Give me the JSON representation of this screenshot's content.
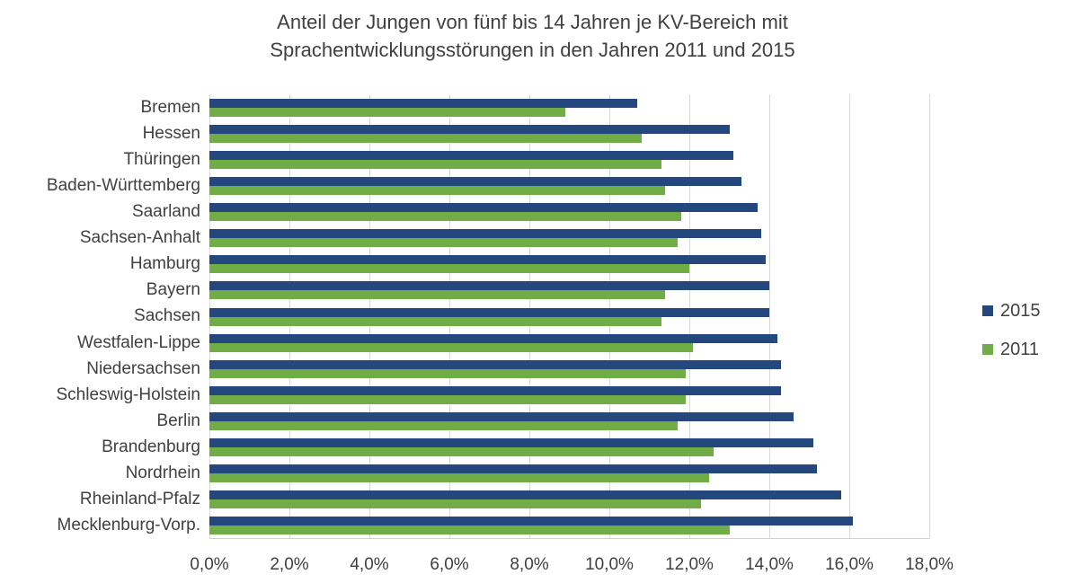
{
  "title_lines": [
    "Anteil der Jungen von fünf bis 14 Jahren je KV-Bereich mit",
    "Sprachentwicklungsstörungen in den Jahren 2011 und 2015"
  ],
  "chart_data": {
    "type": "bar",
    "orientation": "horizontal",
    "title": "Anteil der Jungen von fünf bis 14 Jahren je KV-Bereich mit Sprachentwicklungsstörungen in den Jahren 2011 und 2015",
    "categories": [
      "Bremen",
      "Hessen",
      "Thüringen",
      "Baden-Württemberg",
      "Saarland",
      "Sachsen-Anhalt",
      "Hamburg",
      "Bayern",
      "Sachsen",
      "Westfalen-Lippe",
      "Niedersachsen",
      "Schleswig-Holstein",
      "Berlin",
      "Brandenburg",
      "Nordrhein",
      "Rheinland-Pfalz",
      "Mecklenburg-Vorp."
    ],
    "series": [
      {
        "name": "2015",
        "color": "#24477d",
        "values": [
          10.7,
          13.0,
          13.1,
          13.3,
          13.7,
          13.8,
          13.9,
          14.0,
          14.0,
          14.2,
          14.3,
          14.3,
          14.6,
          15.1,
          15.2,
          15.8,
          16.1
        ]
      },
      {
        "name": "2011",
        "color": "#70ad47",
        "values": [
          8.9,
          10.8,
          11.3,
          11.4,
          11.8,
          11.7,
          12.0,
          11.4,
          11.3,
          12.1,
          11.9,
          11.9,
          11.7,
          12.6,
          12.5,
          12.3,
          13.0
        ]
      }
    ],
    "xlim": [
      0,
      18
    ],
    "x_ticks": [
      "0,0%",
      "2,0%",
      "4,0%",
      "6,0%",
      "8,0%",
      "10,0%",
      "12,0%",
      "14,0%",
      "16,0%",
      "18,0%"
    ],
    "grid": true,
    "legend_position": "right",
    "unit": "percent"
  },
  "legend": {
    "items": [
      {
        "label": "2015",
        "color": "#24477d"
      },
      {
        "label": "2011",
        "color": "#70ad47"
      }
    ]
  },
  "colors": {
    "bar_2015": "#24477d",
    "bar_2011": "#70ad47",
    "gridline": "#d9d9d9",
    "axis_line": "#d0d0d0",
    "text": "#404040"
  }
}
